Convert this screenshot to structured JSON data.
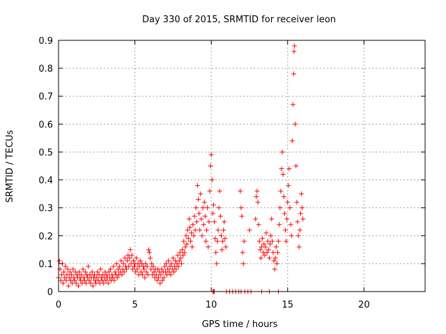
{
  "chart_data": {
    "type": "scatter",
    "title": "Day 330 of 2015, SRMTID for receiver leon",
    "xlabel": "GPS time / hours",
    "ylabel": "SRMTID / TECUs",
    "xlim": [
      0,
      24
    ],
    "ylim": [
      0,
      0.9
    ],
    "x_ticks": [
      0,
      5,
      10,
      15,
      20
    ],
    "x_tick_labels": [
      "0",
      "5",
      "10",
      "15",
      "20"
    ],
    "y_ticks": [
      0,
      0.1,
      0.2,
      0.3,
      0.4,
      0.5,
      0.6,
      0.7,
      0.8,
      0.9
    ],
    "y_tick_labels": [
      "0",
      "0.1",
      "0.2",
      "0.3",
      "0.4",
      "0.5",
      "0.6",
      "0.7",
      "0.8",
      "0.9"
    ],
    "grid": true,
    "marker": "+",
    "series_color": "#ff0000",
    "series": [
      {
        "name": "SRMTID",
        "points": [
          [
            0.0,
            0.05
          ],
          [
            0.05,
            0.11
          ],
          [
            0.1,
            0.08
          ],
          [
            0.15,
            0.04
          ],
          [
            0.2,
            0.06
          ],
          [
            0.25,
            0.1
          ],
          [
            0.3,
            0.03
          ],
          [
            0.35,
            0.07
          ],
          [
            0.4,
            0.05
          ],
          [
            0.45,
            0.09
          ],
          [
            0.5,
            0.04
          ],
          [
            0.55,
            0.06
          ],
          [
            0.6,
            0.08
          ],
          [
            0.65,
            0.02
          ],
          [
            0.7,
            0.05
          ],
          [
            0.75,
            0.07
          ],
          [
            0.8,
            0.04
          ],
          [
            0.85,
            0.06
          ],
          [
            0.9,
            0.03
          ],
          [
            0.95,
            0.08
          ],
          [
            1.0,
            0.05
          ],
          [
            1.05,
            0.04
          ],
          [
            1.1,
            0.07
          ],
          [
            1.15,
            0.03
          ],
          [
            1.2,
            0.06
          ],
          [
            1.25,
            0.05
          ],
          [
            1.3,
            0.02
          ],
          [
            1.35,
            0.07
          ],
          [
            1.4,
            0.05
          ],
          [
            1.45,
            0.04
          ],
          [
            1.5,
            0.06
          ],
          [
            1.55,
            0.03
          ],
          [
            1.6,
            0.08
          ],
          [
            1.65,
            0.05
          ],
          [
            1.7,
            0.04
          ],
          [
            1.75,
            0.07
          ],
          [
            1.8,
            0.03
          ],
          [
            1.85,
            0.06
          ],
          [
            1.9,
            0.05
          ],
          [
            1.95,
            0.09
          ],
          [
            2.0,
            0.04
          ],
          [
            2.05,
            0.06
          ],
          [
            2.1,
            0.03
          ],
          [
            2.15,
            0.05
          ],
          [
            2.2,
            0.07
          ],
          [
            2.25,
            0.02
          ],
          [
            2.3,
            0.05
          ],
          [
            2.35,
            0.06
          ],
          [
            2.4,
            0.04
          ],
          [
            2.45,
            0.03
          ],
          [
            2.5,
            0.05
          ],
          [
            2.55,
            0.07
          ],
          [
            2.6,
            0.04
          ],
          [
            2.65,
            0.06
          ],
          [
            2.7,
            0.03
          ],
          [
            2.75,
            0.08
          ],
          [
            2.8,
            0.05
          ],
          [
            2.85,
            0.04
          ],
          [
            2.9,
            0.06
          ],
          [
            2.95,
            0.03
          ],
          [
            3.0,
            0.05
          ],
          [
            3.05,
            0.07
          ],
          [
            3.1,
            0.04
          ],
          [
            3.15,
            0.06
          ],
          [
            3.2,
            0.05
          ],
          [
            3.25,
            0.03
          ],
          [
            3.3,
            0.07
          ],
          [
            3.35,
            0.05
          ],
          [
            3.4,
            0.08
          ],
          [
            3.45,
            0.04
          ],
          [
            3.5,
            0.06
          ],
          [
            3.55,
            0.05
          ],
          [
            3.6,
            0.09
          ],
          [
            3.65,
            0.04
          ],
          [
            3.7,
            0.07
          ],
          [
            3.75,
            0.06
          ],
          [
            3.8,
            0.1
          ],
          [
            3.85,
            0.05
          ],
          [
            3.9,
            0.08
          ],
          [
            3.95,
            0.06
          ],
          [
            4.0,
            0.09
          ],
          [
            4.05,
            0.07
          ],
          [
            4.1,
            0.11
          ],
          [
            4.15,
            0.06
          ],
          [
            4.2,
            0.08
          ],
          [
            4.25,
            0.1
          ],
          [
            4.3,
            0.07
          ],
          [
            4.35,
            0.12
          ],
          [
            4.4,
            0.09
          ],
          [
            4.45,
            0.08
          ],
          [
            4.5,
            0.11
          ],
          [
            4.55,
            0.13
          ],
          [
            4.6,
            0.09
          ],
          [
            4.65,
            0.12
          ],
          [
            4.7,
            0.15
          ],
          [
            4.75,
            0.1
          ],
          [
            4.8,
            0.13
          ],
          [
            4.85,
            0.08
          ],
          [
            4.9,
            0.11
          ],
          [
            4.95,
            0.09
          ],
          [
            5.0,
            0.1
          ],
          [
            5.05,
            0.07
          ],
          [
            5.1,
            0.12
          ],
          [
            5.15,
            0.08
          ],
          [
            5.2,
            0.1
          ],
          [
            5.25,
            0.06
          ],
          [
            5.3,
            0.09
          ],
          [
            5.35,
            0.11
          ],
          [
            5.4,
            0.07
          ],
          [
            5.45,
            0.1
          ],
          [
            5.5,
            0.06
          ],
          [
            5.55,
            0.09
          ],
          [
            5.6,
            0.08
          ],
          [
            5.65,
            0.05
          ],
          [
            5.7,
            0.1
          ],
          [
            5.75,
            0.07
          ],
          [
            5.8,
            0.09
          ],
          [
            5.85,
            0.06
          ],
          [
            5.9,
            0.15
          ],
          [
            5.95,
            0.14
          ],
          [
            6.0,
            0.12
          ],
          [
            6.05,
            0.08
          ],
          [
            6.1,
            0.1
          ],
          [
            6.15,
            0.06
          ],
          [
            6.2,
            0.09
          ],
          [
            6.25,
            0.07
          ],
          [
            6.3,
            0.05
          ],
          [
            6.35,
            0.08
          ],
          [
            6.4,
            0.06
          ],
          [
            6.45,
            0.04
          ],
          [
            6.5,
            0.08
          ],
          [
            6.55,
            0.05
          ],
          [
            6.6,
            0.07
          ],
          [
            6.65,
            0.03
          ],
          [
            6.7,
            0.06
          ],
          [
            6.75,
            0.08
          ],
          [
            6.8,
            0.04
          ],
          [
            6.85,
            0.07
          ],
          [
            6.9,
            0.05
          ],
          [
            6.95,
            0.09
          ],
          [
            7.0,
            0.07
          ],
          [
            7.05,
            0.1
          ],
          [
            7.1,
            0.06
          ],
          [
            7.15,
            0.08
          ],
          [
            7.2,
            0.11
          ],
          [
            7.25,
            0.07
          ],
          [
            7.3,
            0.09
          ],
          [
            7.35,
            0.06
          ],
          [
            7.4,
            0.1
          ],
          [
            7.45,
            0.08
          ],
          [
            7.5,
            0.12
          ],
          [
            7.55,
            0.07
          ],
          [
            7.6,
            0.09
          ],
          [
            7.65,
            0.11
          ],
          [
            7.7,
            0.08
          ],
          [
            7.75,
            0.1
          ],
          [
            7.8,
            0.13
          ],
          [
            7.85,
            0.09
          ],
          [
            7.9,
            0.11
          ],
          [
            7.95,
            0.14
          ],
          [
            8.0,
            0.12
          ],
          [
            8.05,
            0.1
          ],
          [
            8.1,
            0.15
          ],
          [
            8.15,
            0.13
          ],
          [
            8.2,
            0.18
          ],
          [
            8.25,
            0.14
          ],
          [
            8.3,
            0.16
          ],
          [
            8.35,
            0.2
          ],
          [
            8.4,
            0.17
          ],
          [
            8.45,
            0.22
          ],
          [
            8.5,
            0.19
          ],
          [
            8.55,
            0.26
          ],
          [
            8.6,
            0.23
          ],
          [
            8.65,
            0.18
          ],
          [
            8.7,
            0.21
          ],
          [
            8.75,
            0.16
          ],
          [
            8.8,
            0.24
          ],
          [
            8.85,
            0.2
          ],
          [
            8.9,
            0.27
          ],
          [
            8.95,
            0.22
          ],
          [
            9.0,
            0.3
          ],
          [
            9.05,
            0.25
          ],
          [
            9.1,
            0.38
          ],
          [
            9.15,
            0.33
          ],
          [
            9.2,
            0.28
          ],
          [
            9.25,
            0.22
          ],
          [
            9.3,
            0.35
          ],
          [
            9.35,
            0.26
          ],
          [
            9.4,
            0.2
          ],
          [
            9.45,
            0.3
          ],
          [
            9.5,
            0.24
          ],
          [
            9.55,
            0.32
          ],
          [
            9.6,
            0.27
          ],
          [
            9.65,
            0.18
          ],
          [
            9.7,
            0.22
          ],
          [
            9.75,
            0.3
          ],
          [
            9.8,
            0.16
          ],
          [
            9.85,
            0.25
          ],
          [
            9.9,
            0.36
          ],
          [
            9.95,
            0.45
          ],
          [
            10.0,
            0.49
          ],
          [
            10.05,
            0.4
          ],
          [
            10.1,
            0.28
          ],
          [
            10.15,
            0.31
          ],
          [
            10.2,
            0.25
          ],
          [
            10.25,
            0.19
          ],
          [
            10.3,
            0.14
          ],
          [
            10.35,
            0.1
          ],
          [
            10.4,
            0.18
          ],
          [
            10.45,
            0.22
          ],
          [
            10.5,
            0.3
          ],
          [
            10.55,
            0.36
          ],
          [
            10.6,
            0.27
          ],
          [
            10.65,
            0.2
          ],
          [
            10.7,
            0.15
          ],
          [
            10.75,
            0.18
          ],
          [
            10.8,
            0.22
          ],
          [
            10.85,
            0.25
          ],
          [
            10.9,
            0.19
          ],
          [
            10.95,
            0.16
          ],
          [
            11.9,
            0.36
          ],
          [
            11.95,
            0.3
          ],
          [
            12.0,
            0.27
          ],
          [
            12.05,
            0.14
          ],
          [
            12.1,
            0.1
          ],
          [
            12.15,
            0.18
          ],
          [
            12.5,
            0.22
          ],
          [
            12.9,
            0.26
          ],
          [
            12.95,
            0.34
          ],
          [
            13.0,
            0.36
          ],
          [
            13.05,
            0.32
          ],
          [
            13.1,
            0.24
          ],
          [
            13.15,
            0.18
          ],
          [
            13.2,
            0.15
          ],
          [
            13.25,
            0.12
          ],
          [
            13.3,
            0.16
          ],
          [
            13.35,
            0.19
          ],
          [
            13.4,
            0.14
          ],
          [
            13.45,
            0.17
          ],
          [
            13.5,
            0.13
          ],
          [
            13.55,
            0.16
          ],
          [
            13.6,
            0.21
          ],
          [
            13.65,
            0.14
          ],
          [
            13.7,
            0.18
          ],
          [
            13.75,
            0.15
          ],
          [
            13.8,
            0.12
          ],
          [
            13.85,
            0.17
          ],
          [
            13.9,
            0.2
          ],
          [
            13.95,
            0.26
          ],
          [
            14.0,
            0.18
          ],
          [
            14.05,
            0.14
          ],
          [
            14.1,
            0.11
          ],
          [
            14.15,
            0.08
          ],
          [
            14.2,
            0.12
          ],
          [
            14.25,
            0.16
          ],
          [
            14.3,
            0.1
          ],
          [
            14.35,
            0.14
          ],
          [
            14.4,
            0.18
          ],
          [
            14.45,
            0.24
          ],
          [
            14.5,
            0.3
          ],
          [
            14.55,
            0.36
          ],
          [
            14.6,
            0.44
          ],
          [
            14.65,
            0.5
          ],
          [
            14.7,
            0.42
          ],
          [
            14.75,
            0.34
          ],
          [
            14.8,
            0.28
          ],
          [
            14.85,
            0.22
          ],
          [
            14.9,
            0.18
          ],
          [
            14.95,
            0.26
          ],
          [
            15.0,
            0.32
          ],
          [
            15.05,
            0.38
          ],
          [
            15.1,
            0.44
          ],
          [
            15.15,
            0.3
          ],
          [
            15.2,
            0.24
          ],
          [
            15.25,
            0.2
          ],
          [
            15.3,
            0.54
          ],
          [
            15.35,
            0.67
          ],
          [
            15.4,
            0.78
          ],
          [
            15.42,
            0.86
          ],
          [
            15.45,
            0.88
          ],
          [
            15.5,
            0.6
          ],
          [
            15.55,
            0.45
          ],
          [
            15.6,
            0.32
          ],
          [
            15.65,
            0.25
          ],
          [
            15.7,
            0.2
          ],
          [
            15.75,
            0.16
          ],
          [
            15.8,
            0.22
          ],
          [
            15.85,
            0.28
          ],
          [
            15.9,
            0.35
          ],
          [
            15.95,
            0.3
          ],
          [
            16.0,
            0.26
          ]
        ]
      }
    ],
    "zero_run_points": [
      [
        10.1,
        0.0
      ],
      [
        10.15,
        0.0
      ],
      [
        10.2,
        0.0
      ],
      [
        11.0,
        0.0
      ],
      [
        11.2,
        0.0
      ],
      [
        11.4,
        0.0
      ],
      [
        11.6,
        0.0
      ],
      [
        11.8,
        0.0
      ],
      [
        11.95,
        0.0
      ],
      [
        12.2,
        0.0
      ],
      [
        12.4,
        0.0
      ],
      [
        12.6,
        0.0
      ],
      [
        13.3,
        0.0
      ],
      [
        13.8,
        0.0
      ],
      [
        14.4,
        0.0
      ]
    ]
  }
}
